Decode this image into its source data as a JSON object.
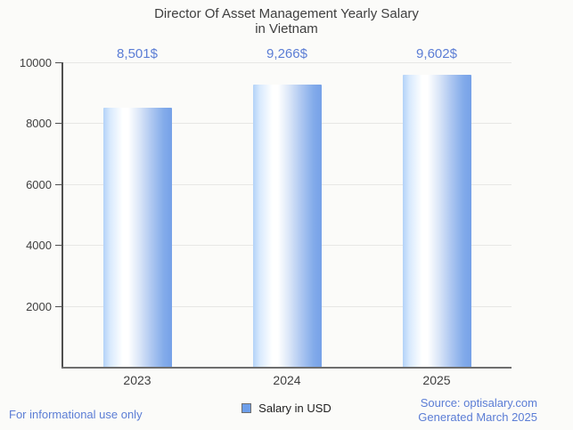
{
  "title": {
    "line1": "Director Of Asset Management Yearly Salary",
    "line2": "in Vietnam"
  },
  "legend": {
    "label": "Salary in USD",
    "swatch_color": "#6d9eea"
  },
  "footer": {
    "left": "For informational use only",
    "source": "Source: optisalary.com",
    "generated": "Generated March 2025"
  },
  "colors": {
    "background": "#fbfbf9",
    "title_text": "#3f3f3f",
    "blue_text": "#5b7dd5",
    "gridline": "#e7e7e5",
    "axis": "#4f4f4f",
    "bar_edge_light": "#b3d2f8",
    "bar_center": "#ffffff",
    "bar_edge_dark": "#76a1e8"
  },
  "chart_data": {
    "type": "bar",
    "title": "Director Of Asset Management Yearly Salary in Vietnam",
    "categories": [
      "2023",
      "2024",
      "2025"
    ],
    "values": [
      8501,
      9266,
      9602
    ],
    "value_labels": [
      "8,501$",
      "9,266$",
      "9,602$"
    ],
    "series": [
      {
        "name": "Salary in USD",
        "values": [
          8501,
          9266,
          9602
        ]
      }
    ],
    "xlabel": "",
    "ylabel": "",
    "ylim": [
      0,
      10000
    ],
    "yticks": [
      2000,
      4000,
      6000,
      8000,
      10000
    ],
    "grid": true,
    "legend_position": "bottom"
  }
}
